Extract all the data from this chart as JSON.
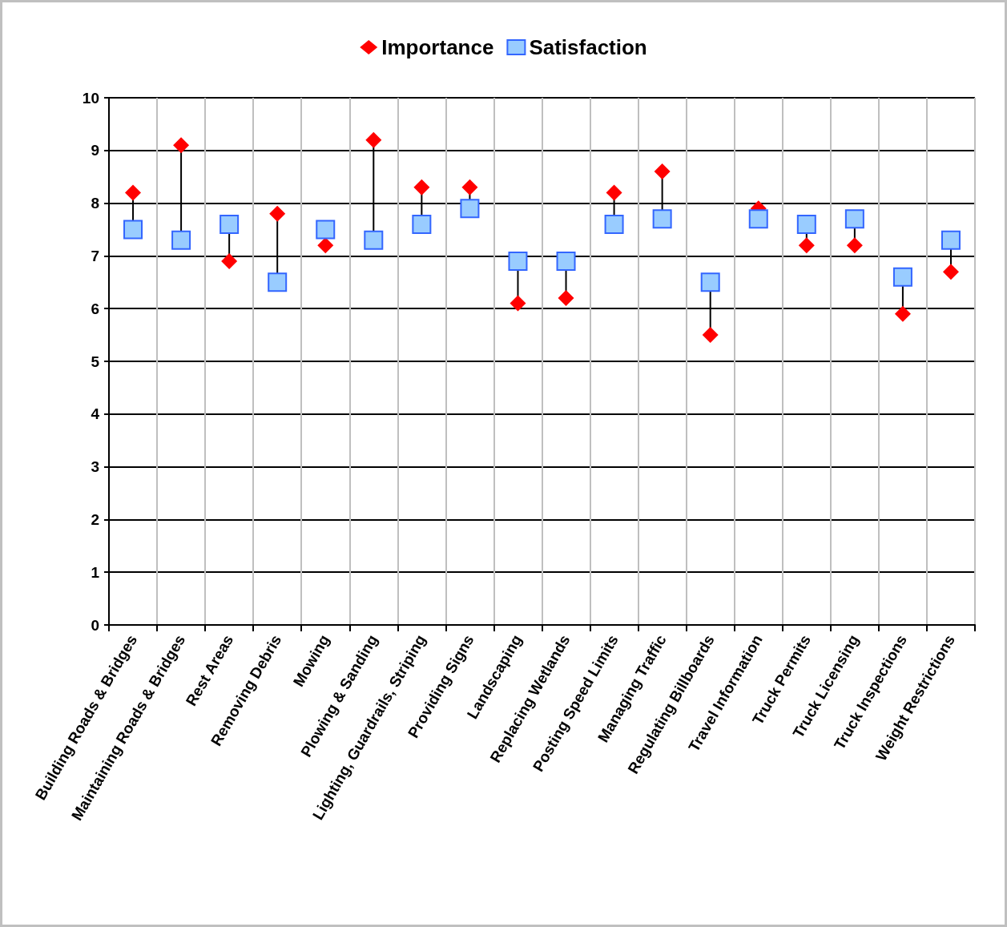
{
  "chart_data": {
    "type": "scatter",
    "categories": [
      "Building Roads & Bridges",
      "Maintaining Roads & Bridges",
      "Rest Areas",
      "Removing Debris",
      "Mowing",
      "Plowing & Sanding",
      "Lighting, Guardrails, Striping",
      "Providing Signs",
      "Landscaping",
      "Replacing Wetlands",
      "Posting Speed Limits",
      "Managing Traffic",
      "Regulating Billboards",
      "Travel Information",
      "Truck Permits",
      "Truck Licensing",
      "Truck Inspections",
      "Weight Restrictions"
    ],
    "series": [
      {
        "name": "Importance",
        "color": "#ff0000",
        "marker": "diamond",
        "values": [
          8.2,
          9.1,
          6.9,
          7.8,
          7.2,
          9.2,
          8.3,
          8.3,
          6.1,
          6.2,
          8.2,
          8.6,
          5.5,
          7.9,
          7.2,
          7.2,
          5.9,
          6.7
        ]
      },
      {
        "name": "Satisfaction",
        "color": "#99ccff",
        "marker": "square",
        "values": [
          7.5,
          7.3,
          7.6,
          6.5,
          7.5,
          7.3,
          7.6,
          7.9,
          6.9,
          6.9,
          7.6,
          7.7,
          6.5,
          7.7,
          7.6,
          7.7,
          6.6,
          7.3
        ]
      }
    ],
    "ylim": [
      0,
      10
    ],
    "yticks": [
      0,
      1,
      2,
      3,
      4,
      5,
      6,
      7,
      8,
      9,
      10
    ],
    "grid": true,
    "legend": "top"
  }
}
